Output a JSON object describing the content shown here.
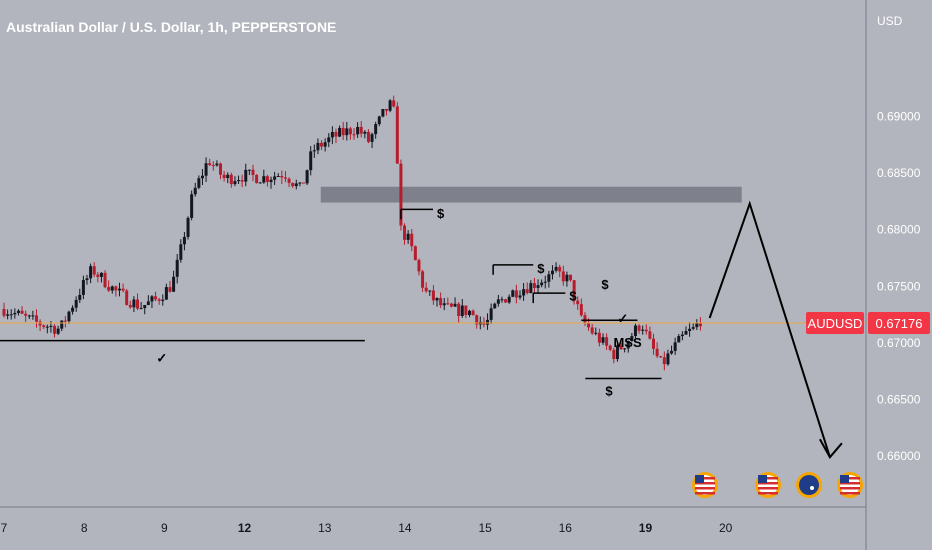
{
  "title": "Australian Dollar / U.S. Dollar, 1h, PEPPERSTONE",
  "currency": "USD",
  "price_tag": {
    "symbol": "AUDUSD",
    "price": "0.67176",
    "color": "#f23645"
  },
  "colors": {
    "background": "#b2b5be",
    "up": "#131722",
    "down": "#b71c2c",
    "price_line": "#f0a640",
    "axis_panel": "#b2b5be",
    "zone": "#787b86"
  },
  "annotations": {
    "dollar_labels": [
      "$",
      "$",
      "$",
      "$",
      "$"
    ],
    "mss_label": "MSS",
    "check_marks": [
      "✓",
      "✓"
    ]
  },
  "event_icons": [
    "us-flag-icon",
    "us-flag-icon",
    "au-flag-icon",
    "us-flag-icon"
  ],
  "chart_data": {
    "type": "candlestick",
    "title": "Australian Dollar / U.S. Dollar, 1h, PEPPERSTONE",
    "y_ticks": [
      "0.69000",
      "0.68500",
      "0.68000",
      "0.67500",
      "0.67000",
      "0.66500",
      "0.66000"
    ],
    "x_ticks": [
      "7",
      "8",
      "9",
      "12",
      "13",
      "14",
      "15",
      "16",
      "19",
      "20"
    ],
    "x_ticks_bold": [
      "12",
      "19"
    ],
    "ylim": [
      0.6555,
      0.7003
    ],
    "last_price": 0.67176,
    "price_path": [
      [
        7.0,
        0.673
      ],
      [
        7.4,
        0.6718
      ],
      [
        7.7,
        0.6712
      ],
      [
        7.9,
        0.674
      ],
      [
        8.1,
        0.6765
      ],
      [
        8.4,
        0.6745
      ],
      [
        8.7,
        0.6732
      ],
      [
        8.9,
        0.6738
      ],
      [
        9.1,
        0.6752
      ],
      [
        9.2,
        0.678
      ],
      [
        9.35,
        0.683
      ],
      [
        9.55,
        0.6862
      ],
      [
        9.75,
        0.6845
      ],
      [
        10.0,
        0.6848
      ],
      [
        10.25,
        0.6846
      ],
      [
        10.5,
        0.685
      ],
      [
        10.7,
        0.6835
      ],
      [
        10.85,
        0.687
      ],
      [
        11.1,
        0.6882
      ],
      [
        11.4,
        0.689
      ],
      [
        11.55,
        0.6878
      ],
      [
        11.75,
        0.6905
      ],
      [
        11.85,
        0.6912
      ],
      [
        11.9,
        0.687
      ],
      [
        11.95,
        0.68
      ],
      [
        12.05,
        0.679
      ],
      [
        12.25,
        0.6745
      ],
      [
        12.5,
        0.673
      ],
      [
        12.8,
        0.6728
      ],
      [
        13.0,
        0.6715
      ],
      [
        13.15,
        0.6735
      ],
      [
        13.35,
        0.6745
      ],
      [
        13.6,
        0.6752
      ],
      [
        13.9,
        0.6762
      ],
      [
        14.05,
        0.6755
      ],
      [
        14.2,
        0.672
      ],
      [
        14.4,
        0.6705
      ],
      [
        14.6,
        0.669
      ],
      [
        14.75,
        0.67
      ],
      [
        14.95,
        0.6718
      ],
      [
        15.05,
        0.67
      ],
      [
        15.2,
        0.668
      ],
      [
        15.35,
        0.6695
      ],
      [
        15.5,
        0.6708
      ],
      [
        15.6,
        0.6712
      ],
      [
        15.7,
        0.6722
      ]
    ],
    "levels": [
      {
        "name": "support-line",
        "price": 0.6702,
        "from": 6.95,
        "to": 11.5
      },
      {
        "name": "highs-line",
        "price": 0.672,
        "from": 14.2,
        "to": 14.9
      },
      {
        "name": "lows-line",
        "price": 0.66685,
        "from": 14.25,
        "to": 15.2
      },
      {
        "name": "liquidity-line-1",
        "price": 0.6818,
        "from": 11.95,
        "to": 12.35
      },
      {
        "name": "liquidity-line-2",
        "price": 0.6769,
        "from": 13.1,
        "to": 13.6
      },
      {
        "name": "liquidity-line-3",
        "price": 0.6744,
        "from": 13.6,
        "to": 14.0
      }
    ],
    "zone": {
      "from": 10.95,
      "to": 16.2,
      "top": 0.6838,
      "bottom": 0.6824
    },
    "projection": [
      [
        15.8,
        0.6722
      ],
      [
        16.3,
        0.6823
      ],
      [
        17.3,
        0.6599
      ]
    ]
  }
}
